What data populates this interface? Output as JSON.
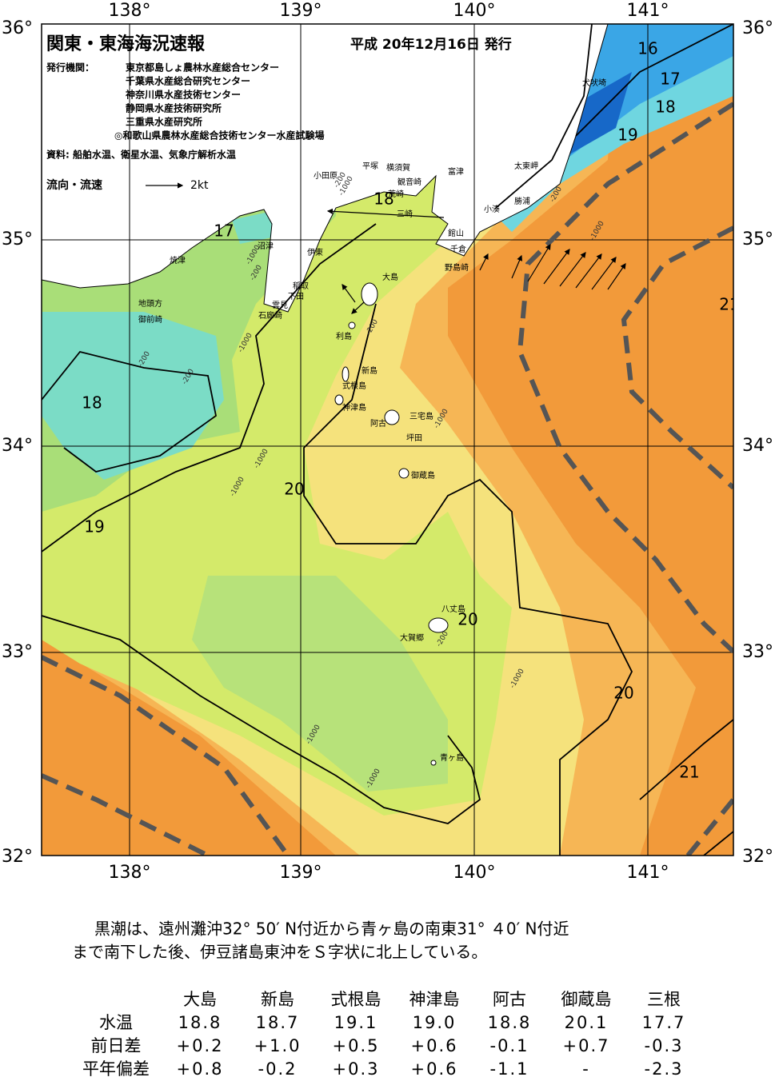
{
  "header": {
    "title": "関東・東海海況速報",
    "date": "平成 20年12月16日 発行",
    "issuer_label": "発行機関：",
    "issuers": [
      "東京都島しょ農林水産総合センター",
      "千葉県水産総合研究センター",
      "神奈川県水産技術センター",
      "静岡県水産技術研究所",
      "三重県水産研究所",
      "◎和歌山県農林水産総合技術センター水産試験場"
    ],
    "source": "資料: 船舶水温、衛星水温、気象庁解析水温",
    "current_legend": "流向・流速",
    "current_scale": "2kt"
  },
  "map": {
    "lat_labels": [
      "36°",
      "35°",
      "34°",
      "33°",
      "32°"
    ],
    "lon_labels": [
      "138°",
      "139°",
      "140°",
      "141°"
    ],
    "isotherm_labels": [
      "16",
      "17",
      "18",
      "19",
      "18",
      "17",
      "18",
      "19",
      "20",
      "20",
      "20",
      "21",
      "21"
    ],
    "depth_labels": [
      "-200",
      "-1000",
      "-1000",
      "-200",
      "-200",
      "-1000",
      "-200",
      "-1000",
      "-200",
      "-1000",
      "-1000",
      "-1000",
      "-1000",
      "-200",
      "-1000",
      "-1000",
      "-200"
    ],
    "place_names": [
      "犬吠埼",
      "太東岬",
      "勝浦",
      "小湊",
      "富津",
      "横須賀",
      "観音崎",
      "平塚",
      "小田原",
      "荒崎",
      "三崎",
      "館山",
      "千倉",
      "野島崎",
      "大島",
      "沼津",
      "伊東",
      "稲取",
      "下田",
      "雲見",
      "石廊崎",
      "焼津",
      "地頭方",
      "御前崎",
      "利島",
      "新島",
      "式根島",
      "神津島",
      "阿古",
      "三宅島",
      "坪田",
      "御蔵島",
      "八丈島",
      "大賀郷",
      "青ヶ島"
    ]
  },
  "summary": [
    "黒潮は、遠州灘沖32° 50′ N付近から青ヶ島の南東31° ４0′ N付近",
    "まで南下した後、伊豆諸島東沖をＳ字状に北上している。"
  ],
  "table": {
    "columns": [
      "大島",
      "新島",
      "式根島",
      "神津島",
      "阿古",
      "御蔵島",
      "三根"
    ],
    "rows": [
      {
        "label": "水温",
        "cells": [
          "18.8",
          "18.7",
          "19.1",
          "19.0",
          "18.8",
          "20.1",
          "17.7"
        ]
      },
      {
        "label": "前日差",
        "cells": [
          "+0.2",
          "+1.0",
          "+0.5",
          "+0.6",
          "-0.1",
          "+0.7",
          "-0.3"
        ]
      },
      {
        "label": "平年偏差",
        "cells": [
          "+0.8",
          "-0.2",
          "+0.3",
          "+0.6",
          "-1.1",
          "-",
          "-2.3"
        ]
      }
    ]
  }
}
